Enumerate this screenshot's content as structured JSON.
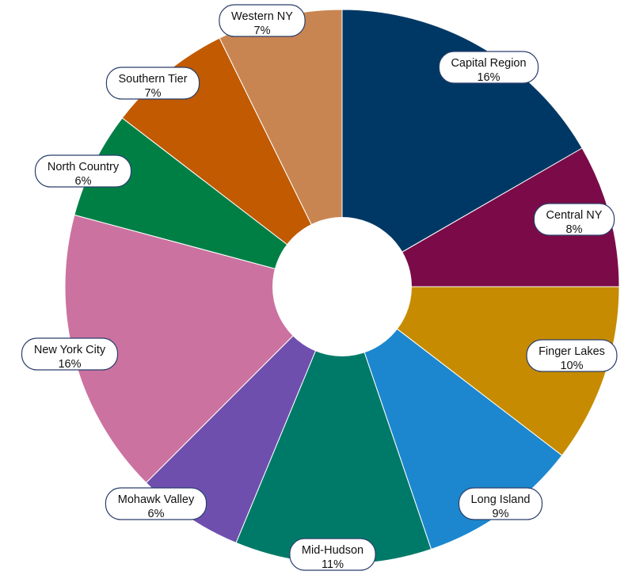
{
  "chart_data": {
    "type": "pie",
    "title": "",
    "series": [
      {
        "label": "Capital Region",
        "percent_label": "16%",
        "value": 16,
        "color": "#003865"
      },
      {
        "label": "Central NY",
        "percent_label": "8%",
        "value": 8,
        "color": "#7b0b48"
      },
      {
        "label": "Finger Lakes",
        "percent_label": "10%",
        "value": 10,
        "color": "#c68b00"
      },
      {
        "label": "Long Island",
        "percent_label": "9%",
        "value": 9,
        "color": "#1c87cf"
      },
      {
        "label": "Mid-Hudson",
        "percent_label": "11%",
        "value": 11,
        "color": "#007a68"
      },
      {
        "label": "Mohawk Valley",
        "percent_label": "6%",
        "value": 6,
        "color": "#6e4fae"
      },
      {
        "label": "New York City",
        "percent_label": "16%",
        "value": 16,
        "color": "#cc72a0"
      },
      {
        "label": "North Country",
        "percent_label": "6%",
        "value": 6,
        "color": "#007f45"
      },
      {
        "label": "Southern Tier",
        "percent_label": "7%",
        "value": 7,
        "color": "#c15a00"
      },
      {
        "label": "Western NY",
        "percent_label": "7%",
        "value": 7,
        "color": "#c98551"
      }
    ]
  }
}
